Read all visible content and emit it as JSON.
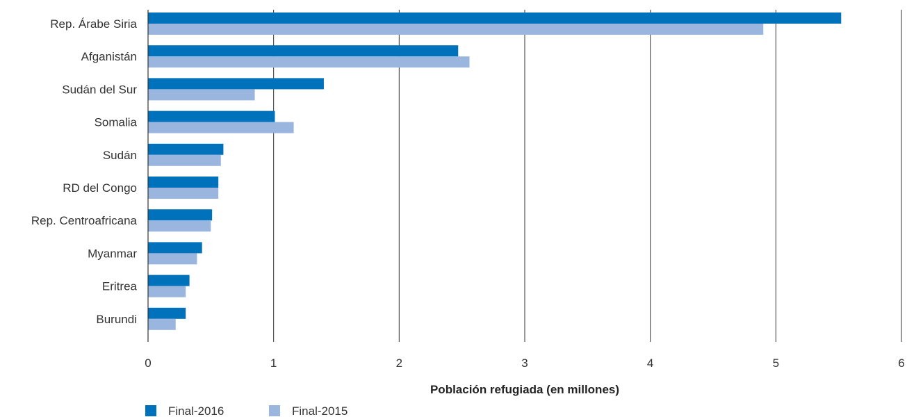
{
  "chart_data": {
    "type": "bar",
    "orientation": "horizontal",
    "categories": [
      "Rep. Árabe Siria",
      "Afganistán",
      "Sudán del Sur",
      "Somalia",
      "Sudán",
      "RD del Congo",
      "Rep. Centroafricana",
      "Myanmar",
      "Eritrea",
      "Burundi"
    ],
    "series": [
      {
        "name": "Final-2016",
        "color": "#0072bc",
        "values": [
          5.52,
          2.47,
          1.4,
          1.01,
          0.6,
          0.56,
          0.51,
          0.43,
          0.33,
          0.3
        ]
      },
      {
        "name": "Final-2015",
        "color": "#9bb6de",
        "values": [
          4.9,
          2.56,
          0.85,
          1.16,
          0.58,
          0.56,
          0.5,
          0.39,
          0.3,
          0.22
        ]
      }
    ],
    "xlim": [
      0,
      6
    ],
    "x_ticks": [
      "0",
      "1",
      "2",
      "3",
      "4",
      "5",
      "6"
    ],
    "xlabel": "Población refugiada (en millones)",
    "ylabel": "",
    "title": "",
    "grid": true,
    "legend_position": "bottom-left"
  }
}
